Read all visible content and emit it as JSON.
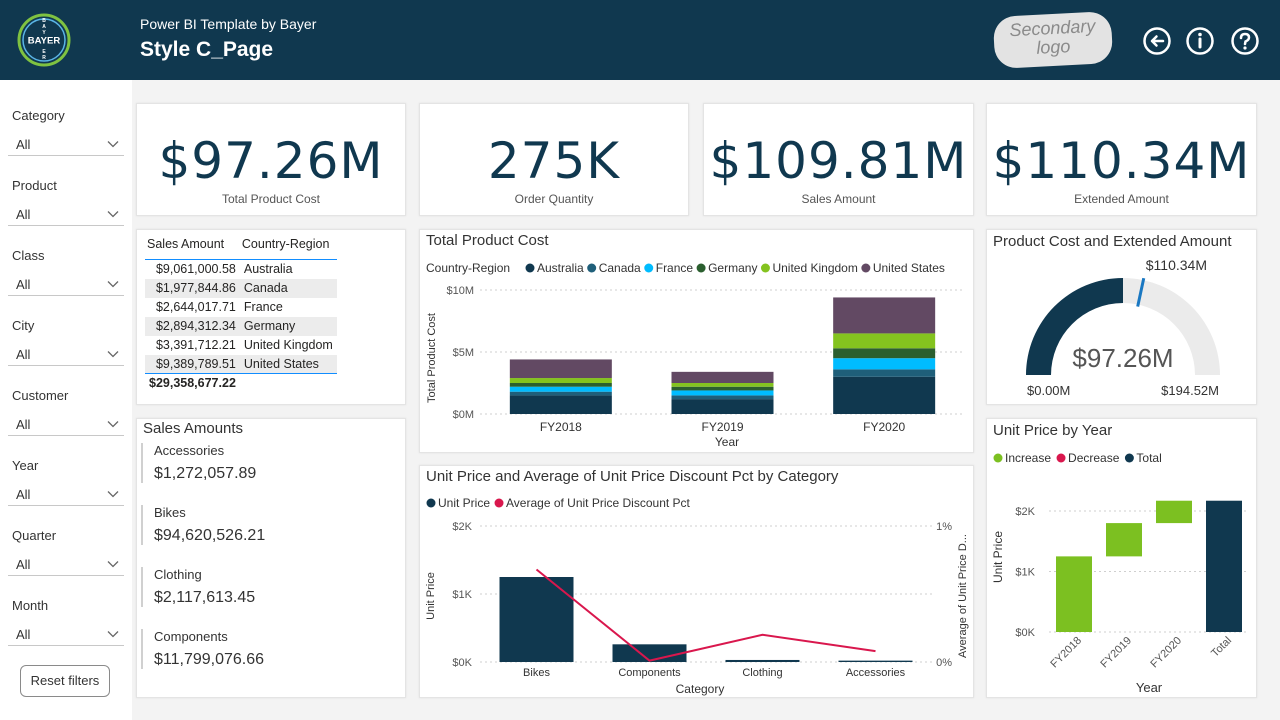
{
  "header": {
    "subtitle": "Power BI Template by Bayer",
    "title": "Style C_Page",
    "logo_text": "BAYER",
    "secondary_logo_line1": "Secondary",
    "secondary_logo_line2": "logo",
    "icons": [
      "back-icon",
      "info-icon",
      "help-icon"
    ],
    "color": "#10384f"
  },
  "slicers": [
    {
      "label": "Category",
      "value": "All"
    },
    {
      "label": "Product",
      "value": "All"
    },
    {
      "label": "Class",
      "value": "All"
    },
    {
      "label": "City",
      "value": "All"
    },
    {
      "label": "Customer",
      "value": "All"
    },
    {
      "label": "Year",
      "value": "All"
    },
    {
      "label": "Quarter",
      "value": "All"
    },
    {
      "label": "Month",
      "value": "All"
    }
  ],
  "reset_label": "Reset filters",
  "kpis": [
    {
      "value": "$97.26M",
      "label": "Total Product Cost"
    },
    {
      "value": "275K",
      "label": "Order Quantity"
    },
    {
      "value": "$109.81M",
      "label": "Sales Amount"
    },
    {
      "value": "$110.34M",
      "label": "Extended Amount"
    }
  ],
  "sales_table": {
    "headers": [
      "Sales Amount",
      "Country-Region"
    ],
    "rows": [
      [
        "$9,061,000.58",
        "Australia"
      ],
      [
        "$1,977,844.86",
        "Canada"
      ],
      [
        "$2,644,017.71",
        "France"
      ],
      [
        "$2,894,312.34",
        "Germany"
      ],
      [
        "$3,391,712.21",
        "United Kingdom"
      ],
      [
        "$9,389,789.51",
        "United States"
      ]
    ],
    "total": "$29,358,677.22"
  },
  "sales_amounts": {
    "title": "Sales Amounts",
    "items": [
      {
        "category": "Accessories",
        "value": "$1,272,057.89"
      },
      {
        "category": "Bikes",
        "value": "$94,620,526.21"
      },
      {
        "category": "Clothing",
        "value": "$2,117,613.45"
      },
      {
        "category": "Components",
        "value": "$11,799,076.66"
      }
    ]
  },
  "chart_data": [
    {
      "type": "bar",
      "stacked": true,
      "title": "Total Product Cost",
      "legend_title": "Country-Region",
      "categories": [
        "FY2018",
        "FY2019",
        "FY2020"
      ],
      "series": [
        {
          "name": "Australia",
          "color": "#10384f",
          "values": [
            1.5,
            1.2,
            3.0
          ]
        },
        {
          "name": "Canada",
          "color": "#1f5f7a",
          "values": [
            0.3,
            0.3,
            0.6
          ]
        },
        {
          "name": "France",
          "color": "#00bcff",
          "values": [
            0.4,
            0.4,
            0.9
          ]
        },
        {
          "name": "Germany",
          "color": "#2b5f2f",
          "values": [
            0.3,
            0.3,
            0.8
          ]
        },
        {
          "name": "United Kingdom",
          "color": "#84c31f",
          "values": [
            0.4,
            0.3,
            1.2
          ]
        },
        {
          "name": "United States",
          "color": "#624963",
          "values": [
            1.5,
            0.9,
            2.9
          ]
        }
      ],
      "xlabel": "Year",
      "ylabel": "Total Product Cost",
      "yticks": [
        "$0M",
        "$5M",
        "$10M"
      ],
      "ylim": [
        0,
        10
      ]
    },
    {
      "type": "gauge",
      "title": "Product Cost and Extended Amount",
      "value": 97.26,
      "min": 0,
      "max": 194.52,
      "target": 110.34,
      "value_label": "$97.26M",
      "min_label": "$0.00M",
      "max_label": "$194.52M",
      "target_label": "$110.34M"
    },
    {
      "type": "bar+line",
      "title": "Unit Price and Average of Unit Price Discount Pct by Category",
      "categories": [
        "Bikes",
        "Components",
        "Clothing",
        "Accessories"
      ],
      "series": [
        {
          "name": "Unit Price",
          "type": "bar",
          "color": "#10384f",
          "values": [
            1250,
            260,
            30,
            20
          ]
        },
        {
          "name": "Average of Unit Price Discount Pct",
          "type": "line",
          "color": "#d9174d",
          "values": [
            0.0068,
            0.0001,
            0.002,
            0.0008
          ]
        }
      ],
      "xlabel": "Category",
      "ylabel": "Unit Price",
      "y2label": "Average of Unit Price D...",
      "yticks": [
        "$0K",
        "$1K",
        "$2K"
      ],
      "y2ticks": [
        "0%",
        "1%"
      ],
      "ylim": [
        0,
        2000
      ],
      "y2lim": [
        0,
        0.01
      ]
    },
    {
      "type": "waterfall",
      "title": "Unit Price by Year",
      "legend": [
        {
          "name": "Increase",
          "color": "#7cc021"
        },
        {
          "name": "Decrease",
          "color": "#d9174d"
        },
        {
          "name": "Total",
          "color": "#10384f"
        }
      ],
      "categories": [
        "FY2018",
        "FY2019",
        "FY2020",
        "Total"
      ],
      "steps": [
        {
          "start": 0,
          "end": 1250,
          "kind": "increase"
        },
        {
          "start": 1250,
          "end": 1800,
          "kind": "increase"
        },
        {
          "start": 1800,
          "end": 2170,
          "kind": "increase"
        },
        {
          "start": 0,
          "end": 2170,
          "kind": "total"
        }
      ],
      "xlabel": "Year",
      "ylabel": "Unit Price",
      "yticks": [
        "$0K",
        "$1K",
        "$2K"
      ],
      "ylim": [
        0,
        2000
      ]
    }
  ]
}
